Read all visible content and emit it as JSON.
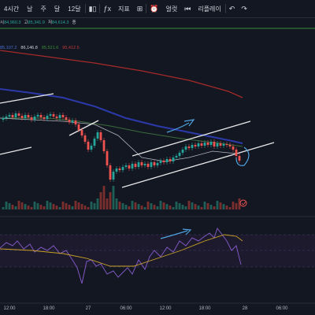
{
  "toolbar": {
    "timeframes": [
      "4시간",
      "날",
      "주",
      "달",
      "12달"
    ],
    "indicators_label": "지표",
    "alert_label": "얼럿",
    "replay_label": "리플레이"
  },
  "ohlc": {
    "open_label": "시",
    "open": "84,960.3",
    "high_label": "고",
    "high": "85,341.9",
    "low_label": "저",
    "low": "84,614.3",
    "close_label": "종",
    "close": ""
  },
  "ma": {
    "v1": "85,107.2",
    "v2": "86,146.8",
    "v3": "85,521.6",
    "v4": "95,412.5"
  },
  "time_labels": [
    "12:00",
    "18:00",
    "27",
    "06:00",
    "12:00",
    "18:00",
    "28",
    "06:00"
  ],
  "colors": {
    "background": "#131722",
    "up": "#26a69a",
    "down": "#ef5350",
    "ma_blue": "#2b3aa8",
    "ma_red": "#a42a2a",
    "ma_green": "#3a6b3a",
    "annotation": "#4fa3e0",
    "rsi": "#7e57c2"
  }
}
